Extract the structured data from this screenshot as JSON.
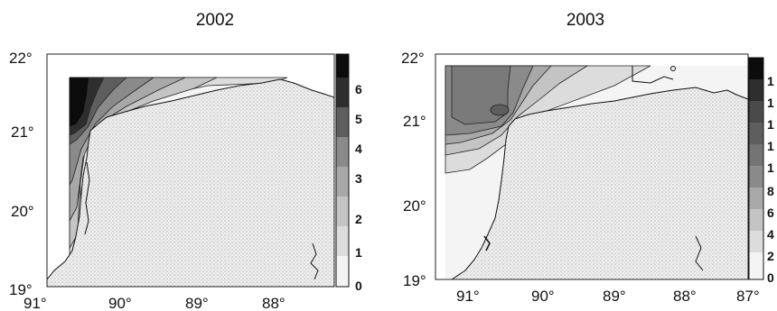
{
  "maps": [
    {
      "title": "2002",
      "lat_labels": [
        "22°",
        "21°",
        "20°",
        "19°"
      ],
      "lon_labels": [
        "91°",
        "90°",
        "89°",
        "88°"
      ],
      "colorbar_labels": [
        "6",
        "5",
        "4",
        "3",
        "2",
        "1",
        "0"
      ]
    },
    {
      "title": "2003",
      "lat_labels": [
        "22°",
        "21°",
        "20°",
        "19°"
      ],
      "lon_labels": [
        "91°",
        "90°",
        "89°",
        "88°",
        "87°"
      ],
      "colorbar_labels": [
        "1",
        "1",
        "1",
        "1",
        "1",
        "8",
        "6",
        "4",
        "2",
        "0"
      ]
    }
  ],
  "colors": {
    "land": "#eeeeee",
    "land_dots": "#bdbdbd",
    "levels": [
      "#f4f4f4",
      "#dcdcdc",
      "#c4c4c4",
      "#a8a8a8",
      "#8a8a8a",
      "#5e5e5e",
      "#2e2e2e",
      "#0c0c0c"
    ]
  }
}
